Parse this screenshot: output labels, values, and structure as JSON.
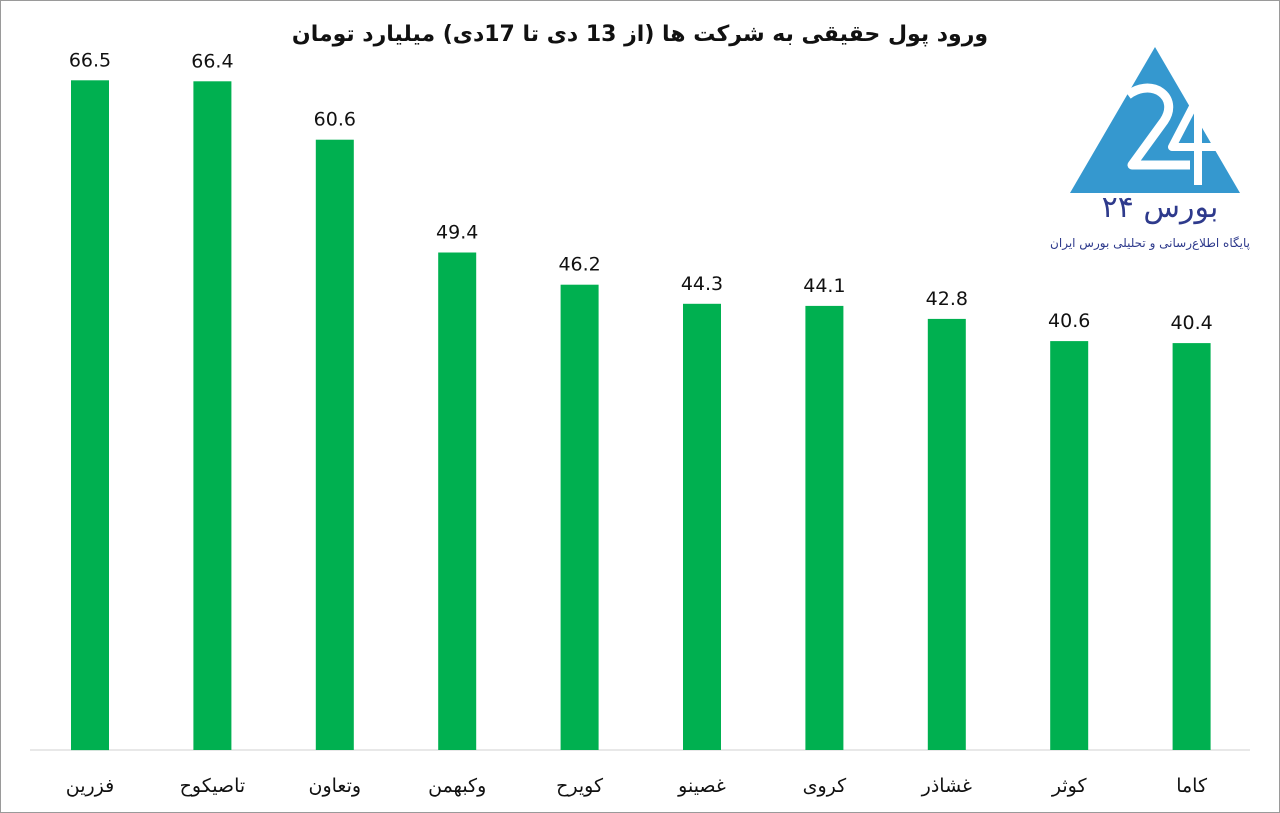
{
  "chart_data": {
    "type": "bar",
    "title": "ورود پول حقیقی به شرکت ها (از 13 دی تا 17دی) میلیارد تومان",
    "categories": [
      "فزرین",
      "تاصیکوح",
      "وتعاون",
      "وکبهمن",
      "کویرح",
      "غصینو",
      "کروی",
      "غشاذر",
      "کوثر",
      "کاما"
    ],
    "values": [
      66.5,
      66.4,
      60.6,
      49.4,
      46.2,
      44.3,
      44.1,
      42.8,
      40.6,
      40.4
    ],
    "ylim": [
      0,
      70
    ],
    "bar_color": "#00b050",
    "grid": false,
    "data_labels": true
  },
  "logo": {
    "text": "بورس ۲۴",
    "subtitle": "پایگاه اطلاع‌رسانی و تحلیلی بورس ایران",
    "color": "#3598cf",
    "text_color": "#2e3a8c"
  }
}
